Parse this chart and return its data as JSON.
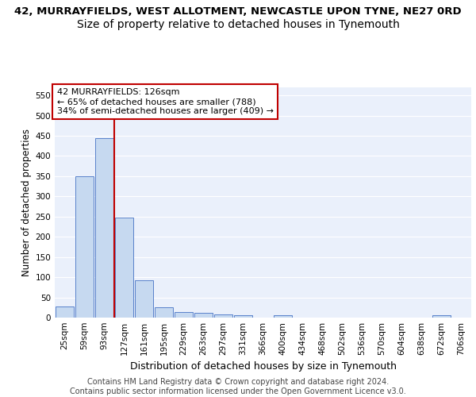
{
  "title_line1": "42, MURRAYFIELDS, WEST ALLOTMENT, NEWCASTLE UPON TYNE, NE27 0RD",
  "title_line2": "Size of property relative to detached houses in Tynemouth",
  "xlabel": "Distribution of detached houses by size in Tynemouth",
  "ylabel": "Number of detached properties",
  "bin_labels": [
    "25sqm",
    "59sqm",
    "93sqm",
    "127sqm",
    "161sqm",
    "195sqm",
    "229sqm",
    "263sqm",
    "297sqm",
    "331sqm",
    "366sqm",
    "400sqm",
    "434sqm",
    "468sqm",
    "502sqm",
    "536sqm",
    "570sqm",
    "604sqm",
    "638sqm",
    "672sqm",
    "706sqm"
  ],
  "bar_values": [
    27,
    350,
    445,
    248,
    93,
    25,
    14,
    11,
    7,
    6,
    0,
    5,
    0,
    0,
    0,
    0,
    0,
    0,
    0,
    5,
    0
  ],
  "bar_color": "#c6d9f0",
  "bar_edge_color": "#4472c4",
  "vline_color": "#c00000",
  "ylim": [
    0,
    570
  ],
  "yticks": [
    0,
    50,
    100,
    150,
    200,
    250,
    300,
    350,
    400,
    450,
    500,
    550
  ],
  "annotation_text": "42 MURRAYFIELDS: 126sqm\n← 65% of detached houses are smaller (788)\n34% of semi-detached houses are larger (409) →",
  "annotation_box_color": "#ffffff",
  "annotation_box_edge": "#c00000",
  "footer_text": "Contains HM Land Registry data © Crown copyright and database right 2024.\nContains public sector information licensed under the Open Government Licence v3.0.",
  "bg_color": "#eaf0fb",
  "grid_color": "#ffffff",
  "title1_fontsize": 9.5,
  "title2_fontsize": 10,
  "xlabel_fontsize": 9,
  "ylabel_fontsize": 8.5,
  "tick_fontsize": 7.5,
  "footer_fontsize": 7,
  "annot_fontsize": 8
}
